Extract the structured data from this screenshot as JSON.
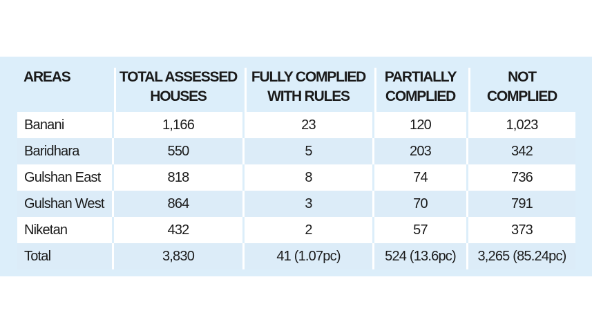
{
  "table": {
    "headers": [
      "AREAS",
      "TOTAL ASSESSED HOUSES",
      "FULLY COMPLIED WITH RULES",
      "PARTIALLY COMPLIED",
      "NOT COMPLIED"
    ],
    "header_lines": [
      [
        "AREAS",
        ""
      ],
      [
        "TOTAL ASSESSED",
        "HOUSES"
      ],
      [
        "FULLY COMPLIED",
        "WITH RULES"
      ],
      [
        "PARTIALLY",
        "COMPLIED"
      ],
      [
        "NOT",
        "COMPLIED"
      ]
    ],
    "rows": [
      [
        "Banani",
        "1,166",
        "23",
        "120",
        "1,023"
      ],
      [
        "Baridhara",
        "550",
        "5",
        "203",
        "342"
      ],
      [
        "Gulshan East",
        "818",
        "8",
        "74",
        "736"
      ],
      [
        "Gulshan West",
        "864",
        "3",
        "70",
        "791"
      ],
      [
        "Niketan",
        "432",
        "2",
        "57",
        "373"
      ],
      [
        "Total",
        "3,830",
        "41 (1.07pc)",
        "524 (13.6pc)",
        "3,265 (85.24pc)"
      ]
    ]
  },
  "colors": {
    "panel_background": "#dceefa",
    "row_alt": "#ffffff"
  }
}
